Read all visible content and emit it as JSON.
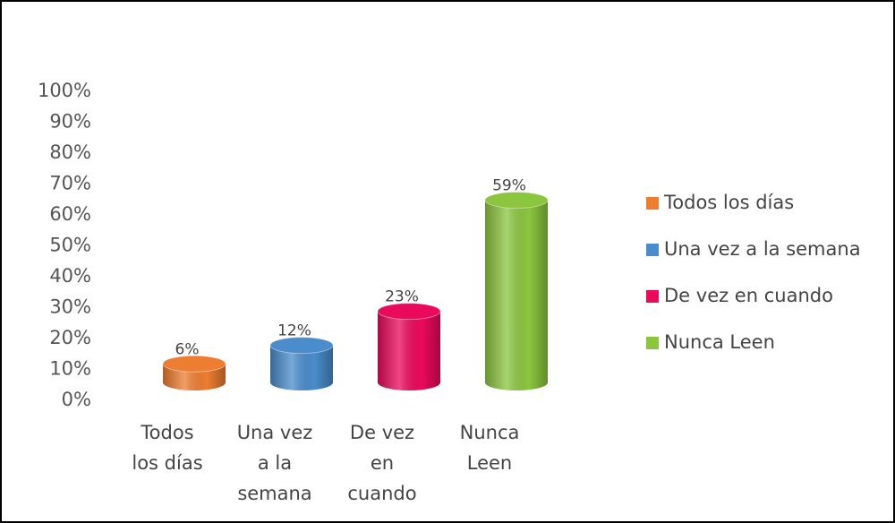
{
  "chart_data": {
    "type": "cylinder-bar",
    "categories": [
      "Todos los días",
      "Una vez a la semana",
      "De vez en cuando",
      "Nunca Leen"
    ],
    "values": [
      6,
      12,
      23,
      59
    ],
    "value_labels": [
      "6%",
      "12%",
      "23%",
      "59%"
    ],
    "colors": [
      "#ed7d31",
      "#4a8ccc",
      "#ea0a5c",
      "#8cc63f"
    ],
    "ylim": [
      0,
      100
    ],
    "yticks": [
      {
        "value": 0,
        "label": "0%"
      },
      {
        "value": 10,
        "label": "10%"
      },
      {
        "value": 20,
        "label": "20%"
      },
      {
        "value": 30,
        "label": "30%"
      },
      {
        "value": 40,
        "label": "40%"
      },
      {
        "value": 50,
        "label": "50%"
      },
      {
        "value": 60,
        "label": "60%"
      },
      {
        "value": 70,
        "label": "70%"
      },
      {
        "value": 80,
        "label": "80%"
      },
      {
        "value": 90,
        "label": "90%"
      },
      {
        "value": 100,
        "label": "100%"
      }
    ],
    "legend": "right",
    "grid": false
  }
}
